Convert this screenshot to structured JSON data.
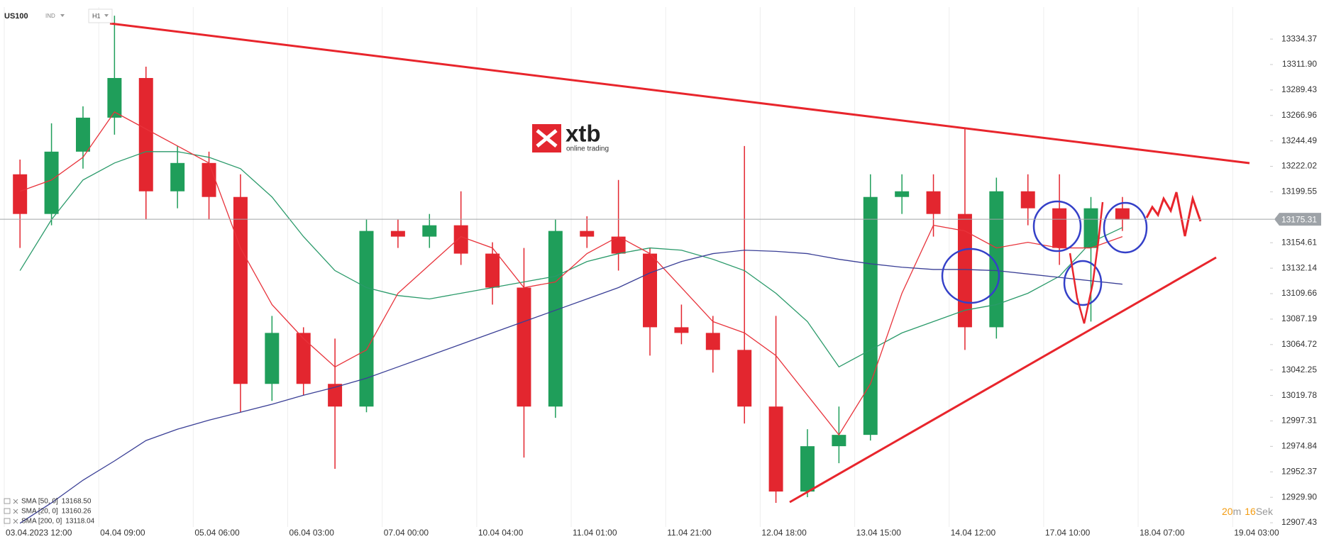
{
  "chart_data": {
    "type": "candlestick",
    "symbol": "US100",
    "instrument_type": "IND",
    "timeframe": "H1",
    "logo": {
      "name": "xtb",
      "tagline": "online trading"
    },
    "countdown": {
      "minutes": "20",
      "minutes_unit": "m",
      "seconds": "16",
      "seconds_unit": "Sek"
    },
    "current_price": 13175.31,
    "up_color": "#1f9e5a",
    "down_color": "#e3262f",
    "grid_x": true,
    "x": [
      0,
      1,
      2,
      3,
      4,
      5,
      6,
      7,
      8,
      9,
      10,
      11,
      12,
      13,
      14,
      15,
      16,
      17,
      18,
      19,
      20,
      21,
      22,
      23,
      24,
      25,
      26,
      27,
      28,
      29,
      30,
      31,
      32,
      33,
      34,
      35
    ],
    "open": [
      13215,
      13180,
      13235,
      13265,
      13300,
      13200,
      13225,
      13195,
      13030,
      13075,
      13030,
      13010,
      13165,
      13160,
      13170,
      13145,
      13115,
      13010,
      13165,
      13160,
      13145,
      13080,
      13075,
      13060,
      13010,
      12935,
      12975,
      12985,
      13195,
      13200,
      13180,
      13080,
      13200,
      13185,
      13150,
      13185
    ],
    "high": [
      13228,
      13260,
      13275,
      13355,
      13310,
      13240,
      13235,
      13215,
      13090,
      13080,
      13070,
      13175,
      13175,
      13180,
      13200,
      13155,
      13150,
      13175,
      13178,
      13210,
      13150,
      13100,
      13090,
      13240,
      13090,
      12990,
      13010,
      13215,
      13215,
      13215,
      13255,
      13212,
      13215,
      13215,
      13195,
      13195
    ],
    "low": [
      13150,
      13170,
      13220,
      13250,
      13175,
      13185,
      13175,
      13005,
      13015,
      13020,
      12955,
      13005,
      13150,
      13150,
      13135,
      13100,
      12965,
      13000,
      13150,
      13130,
      13055,
      13065,
      13040,
      12995,
      12925,
      12930,
      12960,
      12980,
      13180,
      13160,
      13060,
      13070,
      13170,
      13135,
      13085,
      13165
    ],
    "close": [
      13180,
      13235,
      13265,
      13300,
      13200,
      13225,
      13195,
      13030,
      13075,
      13030,
      13010,
      13165,
      13160,
      13170,
      13145,
      13115,
      13010,
      13165,
      13160,
      13145,
      13080,
      13075,
      13060,
      13010,
      12935,
      12975,
      12985,
      13195,
      13200,
      13180,
      13080,
      13200,
      13185,
      13150,
      13185,
      13175
    ],
    "series": [
      {
        "name": "SMA [50, 0]",
        "color": "#2a9a6a",
        "last": {
          "value": 13168.5,
          "label": "13168.50"
        },
        "values": [
          13130,
          13175,
          13210,
          13225,
          13235,
          13235,
          13230,
          13220,
          13195,
          13160,
          13130,
          13115,
          13108,
          13105,
          13110,
          13115,
          13120,
          13125,
          13138,
          13145,
          13150,
          13148,
          13140,
          13130,
          13110,
          13085,
          13045,
          13060,
          13075,
          13085,
          13095,
          13100,
          13110,
          13125,
          13155,
          13168
        ]
      },
      {
        "name": "SMA [20, 0]",
        "color": "#e8333b",
        "last": {
          "value": 13160.26,
          "label": "13160.26"
        },
        "values": [
          13200,
          13210,
          13230,
          13270,
          13255,
          13240,
          13225,
          13150,
          13100,
          13070,
          13045,
          13060,
          13110,
          13135,
          13160,
          13150,
          13115,
          13120,
          13145,
          13160,
          13145,
          13115,
          13085,
          13075,
          13055,
          13020,
          12985,
          13030,
          13110,
          13170,
          13165,
          13150,
          13155,
          13150,
          13150,
          13160
        ]
      },
      {
        "name": "SMA [200, 0]",
        "color": "#3a3f96",
        "last": {
          "value": 13118.04,
          "label": "13118.04"
        },
        "values": [
          12907,
          12925,
          12945,
          12962,
          12980,
          12990,
          12998,
          13005,
          13012,
          13020,
          13027,
          13035,
          13045,
          13055,
          13065,
          13075,
          13085,
          13095,
          13105,
          13115,
          13128,
          13138,
          13145,
          13148,
          13147,
          13145,
          13140,
          13136,
          13133,
          13131,
          13131,
          13130,
          13127,
          13124,
          13121,
          13118
        ]
      }
    ],
    "xlim": [
      -0.135,
      41.9
    ],
    "xticks": [
      {
        "value": 0,
        "label": "03.04.2023  12:00"
      },
      {
        "value": 3,
        "label": "04.04  09:00"
      },
      {
        "value": 6,
        "label": "05.04  06:00"
      },
      {
        "value": 9,
        "label": "06.04  03:00"
      },
      {
        "value": 12,
        "label": "07.04  00:00"
      },
      {
        "value": 15,
        "label": "10.04  04:00"
      },
      {
        "value": 18,
        "label": "11.04  01:00"
      },
      {
        "value": 21,
        "label": "11.04  21:00"
      },
      {
        "value": 24,
        "label": "12.04  18:00"
      },
      {
        "value": 27,
        "label": "13.04  15:00"
      },
      {
        "value": 30,
        "label": "14.04  12:00"
      },
      {
        "value": 33,
        "label": "17.04  10:00"
      },
      {
        "value": 36,
        "label": "18.04  07:00"
      },
      {
        "value": 39,
        "label": "19.04  03:00"
      }
    ],
    "ylim": [
      12903.7,
      13362.6
    ],
    "yticks": [
      {
        "value": 13334.37,
        "label": "13334.37"
      },
      {
        "value": 13311.9,
        "label": "13311.90"
      },
      {
        "value": 13289.43,
        "label": "13289.43"
      },
      {
        "value": 13266.96,
        "label": "13266.96"
      },
      {
        "value": 13244.49,
        "label": "13244.49"
      },
      {
        "value": 13222.02,
        "label": "13222.02"
      },
      {
        "value": 13199.55,
        "label": "13199.55"
      },
      {
        "value": 13154.61,
        "label": "13154.61"
      },
      {
        "value": 13132.14,
        "label": "13132.14"
      },
      {
        "value": 13109.66,
        "label": "13109.66"
      },
      {
        "value": 13087.19,
        "label": "13087.19"
      },
      {
        "value": 13064.72,
        "label": "13064.72"
      },
      {
        "value": 13042.25,
        "label": "13042.25"
      },
      {
        "value": 13019.78,
        "label": "13019.78"
      },
      {
        "value": 12997.31,
        "label": "12997.31"
      },
      {
        "value": 12974.84,
        "label": "12974.84"
      },
      {
        "value": 12952.37,
        "label": "12952.37"
      },
      {
        "value": 12929.9,
        "label": "12929.90"
      },
      {
        "value": 12907.43,
        "label": "12907.43"
      }
    ]
  }
}
